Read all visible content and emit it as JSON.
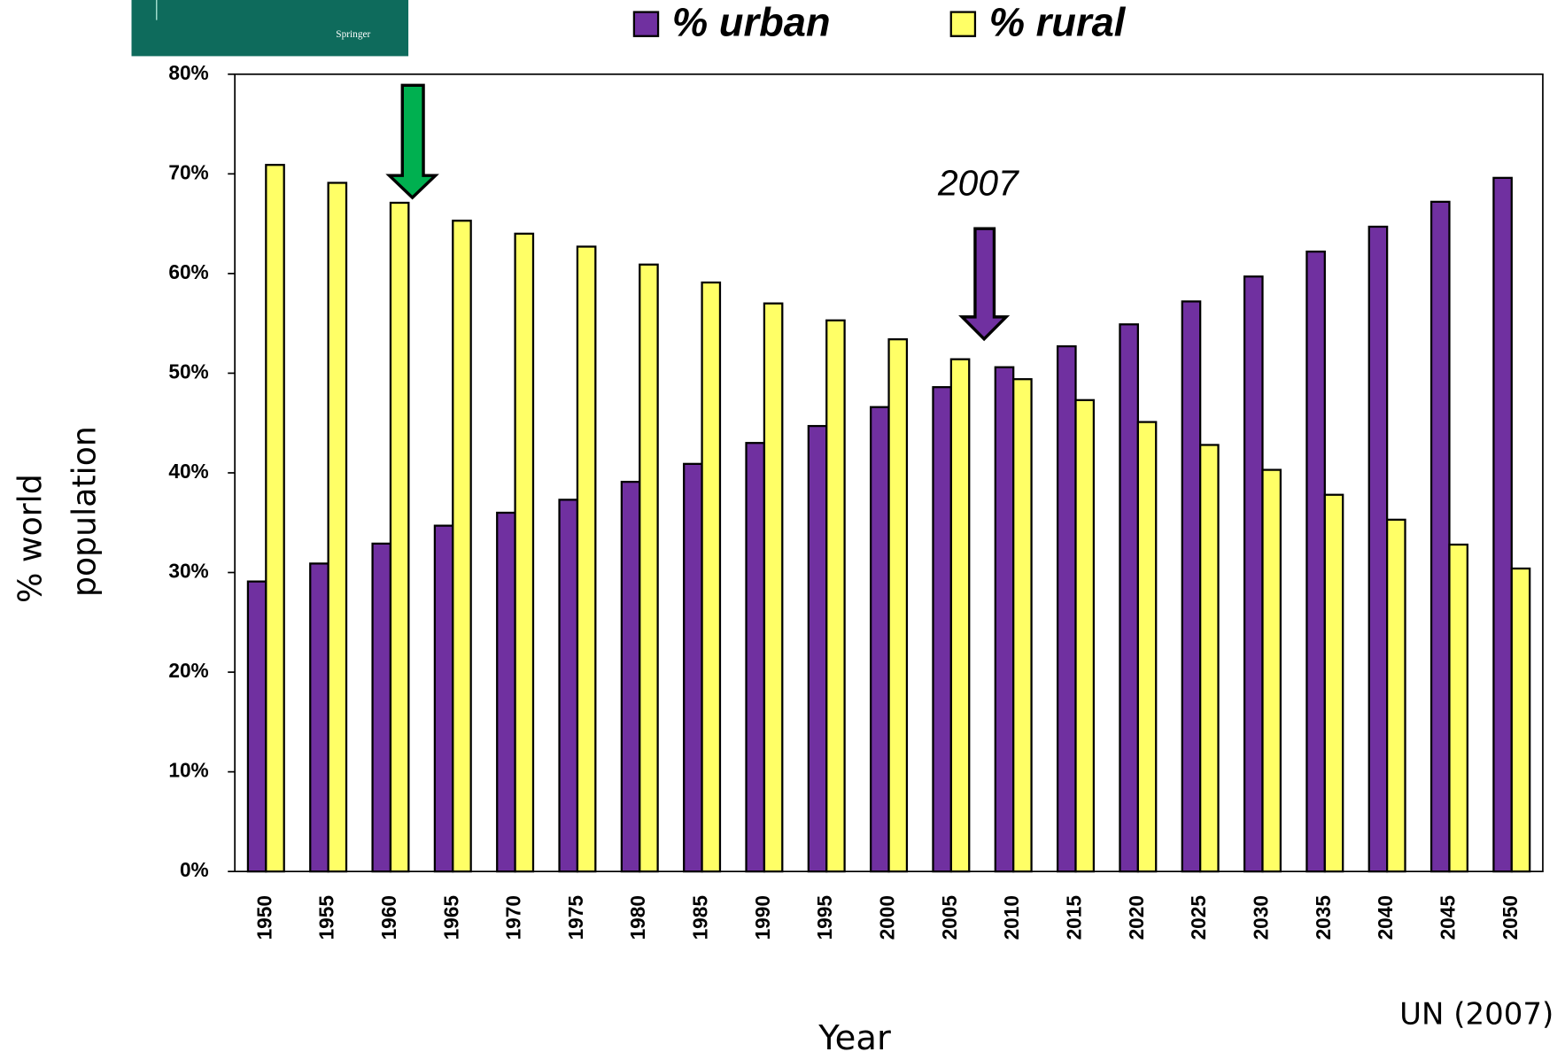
{
  "header": {
    "publisher": "Springer"
  },
  "chart_data": {
    "type": "bar",
    "categories": [
      "1950",
      "1955",
      "1960",
      "1965",
      "1970",
      "1975",
      "1980",
      "1985",
      "1990",
      "1995",
      "2000",
      "2005",
      "2010",
      "2015",
      "2020",
      "2025",
      "2030",
      "2035",
      "2040",
      "2045",
      "2050"
    ],
    "series": [
      {
        "name": "% urban",
        "color": "#7030a0",
        "values": [
          29.1,
          30.9,
          32.9,
          34.7,
          36.0,
          37.3,
          39.1,
          40.9,
          43.0,
          44.7,
          46.6,
          48.6,
          50.6,
          52.7,
          54.9,
          57.2,
          59.7,
          62.2,
          64.7,
          67.2,
          69.6
        ]
      },
      {
        "name": "% rural",
        "color": "#ffff66",
        "values": [
          70.9,
          69.1,
          67.1,
          65.3,
          64.0,
          62.7,
          60.9,
          59.1,
          57.0,
          55.3,
          53.4,
          51.4,
          49.4,
          47.3,
          45.1,
          42.8,
          40.3,
          37.8,
          35.3,
          32.8,
          30.4
        ]
      }
    ],
    "ylim": [
      0,
      80
    ],
    "yticks": [
      {
        "value": 0,
        "label": "0%"
      },
      {
        "value": 10,
        "label": "10%"
      },
      {
        "value": 20,
        "label": "20%"
      },
      {
        "value": 30,
        "label": "30%"
      },
      {
        "value": 40,
        "label": "40%"
      },
      {
        "value": 50,
        "label": "50%"
      },
      {
        "value": 60,
        "label": "60%"
      },
      {
        "value": 70,
        "label": "70%"
      },
      {
        "value": 80,
        "label": "80%"
      }
    ],
    "x_label": "Year",
    "y_label": [
      "% world",
      "population"
    ],
    "annotation": "2007",
    "source": "UN (2007)",
    "legend": "top",
    "grid": false
  }
}
